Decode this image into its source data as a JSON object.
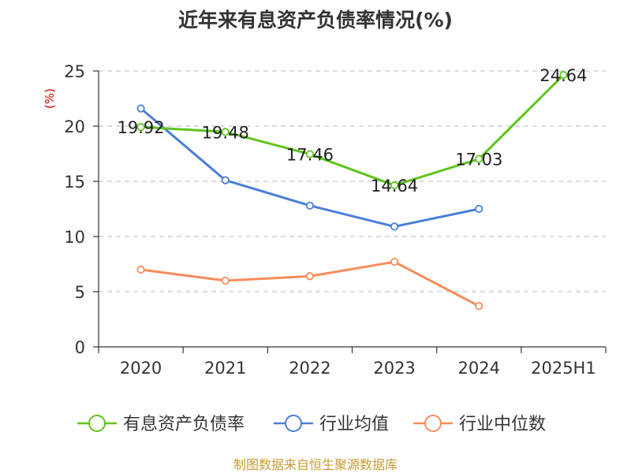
{
  "colors": {
    "title": "#333333",
    "unit": "#d40000",
    "axis": "#333333",
    "grid": "#c8c8c8",
    "source": "#c89b32"
  },
  "chart_data": {
    "type": "line",
    "title": "近年来有息资产负债率情况(%)",
    "ylabel": "(%)",
    "xlabel": "",
    "categories": [
      "2020",
      "2021",
      "2022",
      "2023",
      "2024",
      "2025H1"
    ],
    "ylim": [
      0,
      25
    ],
    "yticks": [
      0,
      5,
      10,
      15,
      20,
      25
    ],
    "grid": true,
    "legend_position": "bottom",
    "series": [
      {
        "name": "有息资产负债率",
        "color": "#5fc41e",
        "values": [
          19.92,
          19.48,
          17.46,
          14.64,
          17.03,
          24.64
        ],
        "labels": [
          "19.92",
          "19.48",
          "17.46",
          "14.64",
          "17.03",
          "24.64"
        ]
      },
      {
        "name": "行业均值",
        "color": "#4a7fd8",
        "values": [
          21.6,
          15.1,
          12.8,
          10.9,
          12.5,
          null
        ],
        "labels": []
      },
      {
        "name": "行业中位数",
        "color": "#f78c5a",
        "values": [
          7.0,
          6.0,
          6.4,
          7.7,
          3.7,
          null
        ],
        "labels": []
      }
    ]
  },
  "footer": {
    "source": "制图数据来自恒生聚源数据库"
  }
}
